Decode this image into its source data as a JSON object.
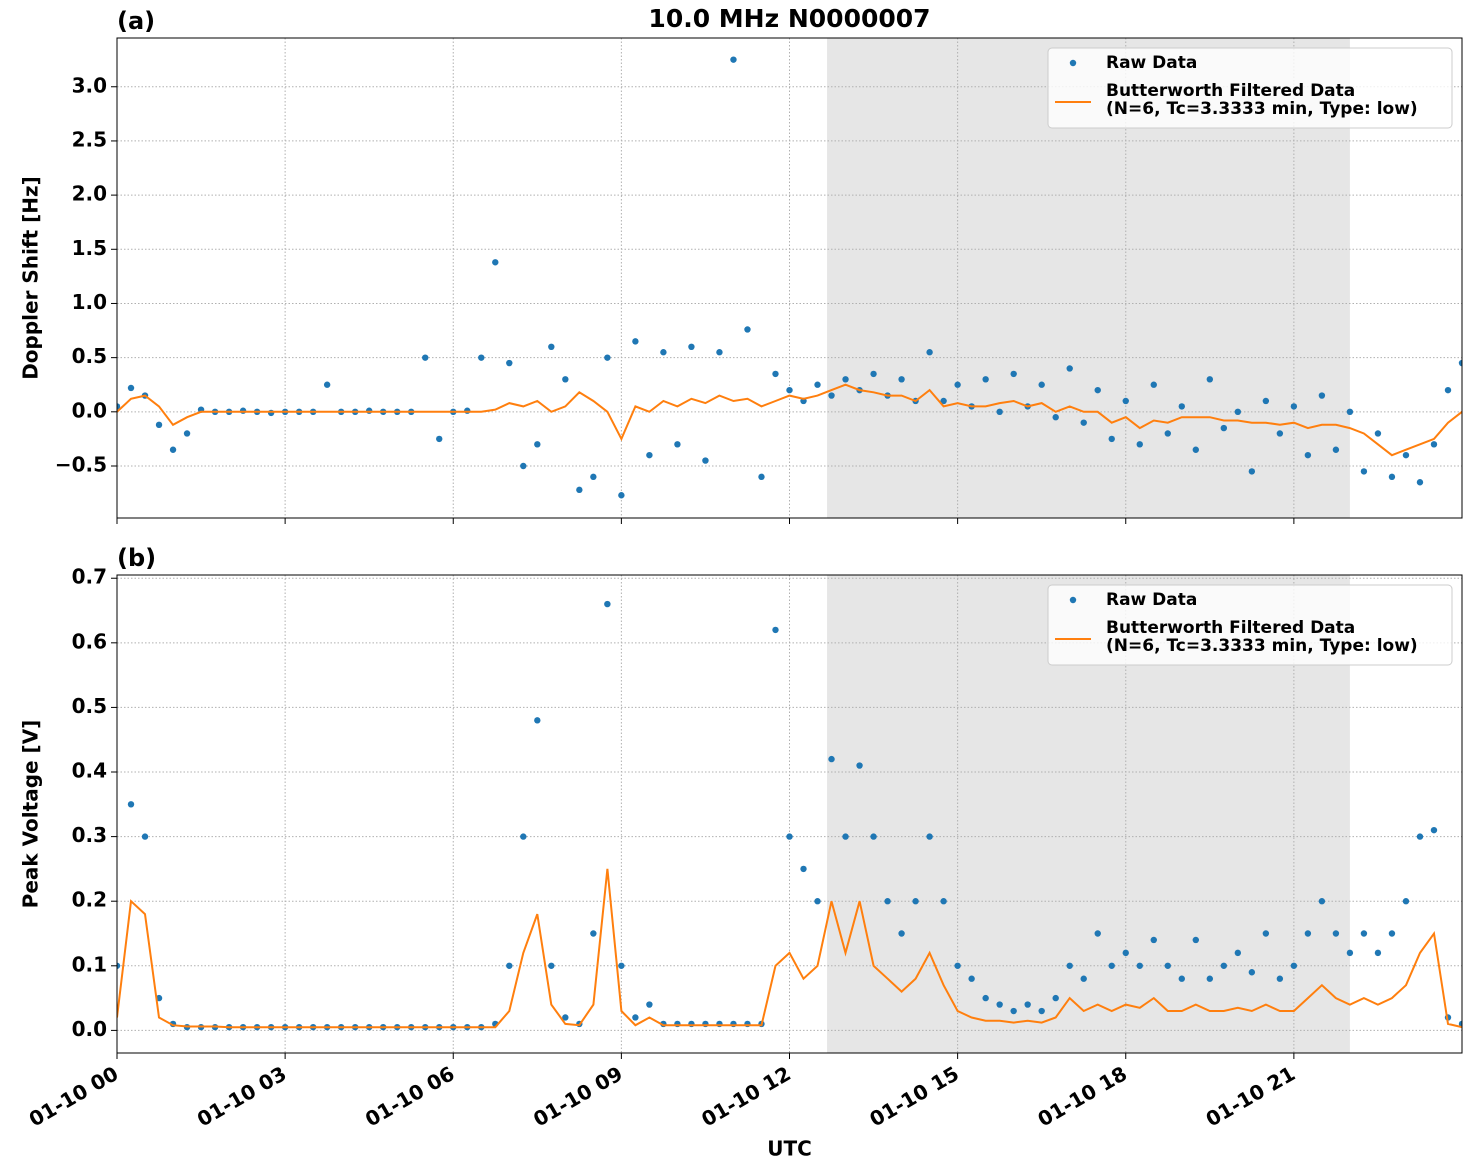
{
  "chart_data": [
    {
      "type": "scatter-line",
      "title": "10.0 MHz N0000007",
      "panel_label": "(a)",
      "ylabel": "Doppler Shift [Hz]",
      "xlim": [
        0,
        24
      ],
      "xticks": [
        0,
        3,
        6,
        9,
        12,
        15,
        18,
        21
      ],
      "ylim": [
        -0.98,
        3.45
      ],
      "yticks": [
        {
          "value": -0.5,
          "label": "−0.5"
        },
        {
          "value": 0,
          "label": "0.0"
        },
        {
          "value": 0.5,
          "label": "0.5"
        },
        {
          "value": 1,
          "label": "1.0"
        },
        {
          "value": 1.5,
          "label": "1.5"
        },
        {
          "value": 2,
          "label": "2.0"
        },
        {
          "value": 2.5,
          "label": "2.5"
        },
        {
          "value": 3,
          "label": "3.0"
        }
      ],
      "grid": true,
      "legend": "upper right",
      "shaded_span": [
        12.67,
        22.0
      ],
      "x": [
        0,
        0.25,
        0.5,
        0.75,
        1,
        1.25,
        1.5,
        1.75,
        2,
        2.25,
        2.5,
        2.75,
        3,
        3.25,
        3.5,
        3.75,
        4,
        4.25,
        4.5,
        4.75,
        5,
        5.25,
        5.5,
        5.75,
        6,
        6.25,
        6.5,
        6.75,
        7,
        7.25,
        7.5,
        7.75,
        8,
        8.25,
        8.5,
        8.75,
        9,
        9.25,
        9.5,
        9.75,
        10,
        10.25,
        10.5,
        10.75,
        11,
        11.25,
        11.5,
        11.75,
        12,
        12.25,
        12.5,
        12.75,
        13,
        13.25,
        13.5,
        13.75,
        14,
        14.25,
        14.5,
        14.75,
        15,
        15.25,
        15.5,
        15.75,
        16,
        16.25,
        16.5,
        16.75,
        17,
        17.25,
        17.5,
        17.75,
        18,
        18.25,
        18.5,
        18.75,
        19,
        19.25,
        19.5,
        19.75,
        20,
        20.25,
        20.5,
        20.75,
        21,
        21.25,
        21.5,
        21.75,
        22,
        22.25,
        22.5,
        22.75,
        23,
        23.25,
        23.5,
        23.75,
        24
      ],
      "series": [
        {
          "name": "Raw Data",
          "kind": "scatter",
          "color": "#1f77b4",
          "values": [
            0.05,
            0.22,
            0.15,
            -0.12,
            -0.35,
            -0.2,
            0.02,
            0.0,
            0.0,
            0.01,
            0.0,
            -0.01,
            0.0,
            0.0,
            0.0,
            0.25,
            0.0,
            0.0,
            0.01,
            0.0,
            0.0,
            0.0,
            0.5,
            -0.25,
            0.0,
            0.01,
            0.5,
            1.38,
            0.45,
            -0.5,
            -0.3,
            0.6,
            0.3,
            -0.72,
            -0.6,
            0.5,
            -0.77,
            0.65,
            -0.4,
            0.55,
            -0.3,
            0.6,
            -0.45,
            0.55,
            3.25,
            0.76,
            -0.6,
            0.35,
            0.2,
            0.1,
            0.25,
            0.15,
            0.3,
            0.2,
            0.35,
            0.15,
            0.3,
            0.1,
            0.55,
            0.1,
            0.25,
            0.05,
            0.3,
            0.0,
            0.35,
            0.05,
            0.25,
            -0.05,
            0.4,
            -0.1,
            0.2,
            -0.25,
            0.1,
            -0.3,
            0.25,
            -0.2,
            0.05,
            -0.35,
            0.3,
            -0.15,
            0.0,
            -0.55,
            0.1,
            -0.2,
            0.05,
            -0.4,
            0.15,
            -0.35,
            0.0,
            -0.55,
            -0.2,
            -0.6,
            -0.4,
            -0.65,
            -0.3,
            0.2,
            0.45
          ]
        },
        {
          "name": "Butterworth Filtered Data\n(N=6, Tc=3.3333 min, Type: low)",
          "kind": "line",
          "color": "#ff7f0e",
          "values": [
            0.0,
            0.12,
            0.15,
            0.05,
            -0.12,
            -0.05,
            0.0,
            0.0,
            0.0,
            0.0,
            0.0,
            0.0,
            0.0,
            0.0,
            0.0,
            0.0,
            0.0,
            0.0,
            0.0,
            0.0,
            0.0,
            0.0,
            0.0,
            0.0,
            0.0,
            0.0,
            0.0,
            0.02,
            0.08,
            0.05,
            0.1,
            0.0,
            0.05,
            0.18,
            0.1,
            0.0,
            -0.25,
            0.05,
            0.0,
            0.1,
            0.05,
            0.12,
            0.08,
            0.15,
            0.1,
            0.12,
            0.05,
            0.1,
            0.15,
            0.12,
            0.15,
            0.2,
            0.25,
            0.2,
            0.18,
            0.15,
            0.15,
            0.1,
            0.2,
            0.05,
            0.08,
            0.05,
            0.05,
            0.08,
            0.1,
            0.05,
            0.08,
            0.0,
            0.05,
            0.0,
            0.0,
            -0.1,
            -0.05,
            -0.15,
            -0.08,
            -0.1,
            -0.05,
            -0.05,
            -0.05,
            -0.08,
            -0.08,
            -0.1,
            -0.1,
            -0.12,
            -0.1,
            -0.15,
            -0.12,
            -0.12,
            -0.15,
            -0.2,
            -0.3,
            -0.4,
            -0.35,
            -0.3,
            -0.25,
            -0.1,
            0.0
          ]
        }
      ]
    },
    {
      "type": "scatter-line",
      "panel_label": "(b)",
      "ylabel": "Peak Voltage [V]",
      "xlabel": "UTC",
      "xlim": [
        0,
        24
      ],
      "xticks": [
        {
          "value": 0,
          "label": "01-10 00"
        },
        {
          "value": 3,
          "label": "01-10 03"
        },
        {
          "value": 6,
          "label": "01-10 06"
        },
        {
          "value": 9,
          "label": "01-10 09"
        },
        {
          "value": 12,
          "label": "01-10 12"
        },
        {
          "value": 15,
          "label": "01-10 15"
        },
        {
          "value": 18,
          "label": "01-10 18"
        },
        {
          "value": 21,
          "label": "01-10 21"
        }
      ],
      "ylim": [
        -0.035,
        0.705
      ],
      "yticks": [
        {
          "value": 0,
          "label": "0.0"
        },
        0.1,
        0.2,
        0.3,
        0.4,
        0.5,
        0.6,
        0.7
      ],
      "grid": true,
      "legend": "upper right",
      "shaded_span": [
        12.67,
        22.0
      ],
      "x": [
        0,
        0.25,
        0.5,
        0.75,
        1,
        1.25,
        1.5,
        1.75,
        2,
        2.25,
        2.5,
        2.75,
        3,
        3.25,
        3.5,
        3.75,
        4,
        4.25,
        4.5,
        4.75,
        5,
        5.25,
        5.5,
        5.75,
        6,
        6.25,
        6.5,
        6.75,
        7,
        7.25,
        7.5,
        7.75,
        8,
        8.25,
        8.5,
        8.75,
        9,
        9.25,
        9.5,
        9.75,
        10,
        10.25,
        10.5,
        10.75,
        11,
        11.25,
        11.5,
        11.75,
        12,
        12.25,
        12.5,
        12.75,
        13,
        13.25,
        13.5,
        13.75,
        14,
        14.25,
        14.5,
        14.75,
        15,
        15.25,
        15.5,
        15.75,
        16,
        16.25,
        16.5,
        16.75,
        17,
        17.25,
        17.5,
        17.75,
        18,
        18.25,
        18.5,
        18.75,
        19,
        19.25,
        19.5,
        19.75,
        20,
        20.25,
        20.5,
        20.75,
        21,
        21.25,
        21.5,
        21.75,
        22,
        22.25,
        22.5,
        22.75,
        23,
        23.25,
        23.5,
        23.75,
        24
      ],
      "series": [
        {
          "name": "Raw Data",
          "kind": "scatter",
          "color": "#1f77b4",
          "values": [
            0.1,
            0.35,
            0.3,
            0.05,
            0.01,
            0.005,
            0.005,
            0.005,
            0.005,
            0.005,
            0.005,
            0.005,
            0.005,
            0.005,
            0.005,
            0.005,
            0.005,
            0.005,
            0.005,
            0.005,
            0.005,
            0.005,
            0.005,
            0.005,
            0.005,
            0.005,
            0.005,
            0.01,
            0.1,
            0.3,
            0.48,
            0.1,
            0.02,
            0.01,
            0.15,
            0.66,
            0.1,
            0.02,
            0.04,
            0.01,
            0.01,
            0.01,
            0.01,
            0.01,
            0.01,
            0.01,
            0.01,
            0.62,
            0.3,
            0.25,
            0.2,
            0.42,
            0.3,
            0.41,
            0.3,
            0.2,
            0.15,
            0.2,
            0.3,
            0.2,
            0.1,
            0.08,
            0.05,
            0.04,
            0.03,
            0.04,
            0.03,
            0.05,
            0.1,
            0.08,
            0.15,
            0.1,
            0.12,
            0.1,
            0.14,
            0.1,
            0.08,
            0.14,
            0.08,
            0.1,
            0.12,
            0.09,
            0.15,
            0.08,
            0.1,
            0.15,
            0.2,
            0.15,
            0.12,
            0.15,
            0.12,
            0.15,
            0.2,
            0.3,
            0.31,
            0.02,
            0.01
          ]
        },
        {
          "name": "Butterworth Filtered Data\n(N=6, Tc=3.3333 min, Type: low)",
          "kind": "line",
          "color": "#ff7f0e",
          "values": [
            0.02,
            0.2,
            0.18,
            0.02,
            0.008,
            0.006,
            0.006,
            0.006,
            0.005,
            0.005,
            0.005,
            0.005,
            0.005,
            0.005,
            0.005,
            0.005,
            0.005,
            0.005,
            0.005,
            0.005,
            0.005,
            0.005,
            0.005,
            0.005,
            0.005,
            0.005,
            0.005,
            0.005,
            0.03,
            0.12,
            0.18,
            0.04,
            0.01,
            0.008,
            0.04,
            0.25,
            0.03,
            0.008,
            0.02,
            0.008,
            0.008,
            0.008,
            0.008,
            0.008,
            0.008,
            0.008,
            0.008,
            0.1,
            0.12,
            0.08,
            0.1,
            0.2,
            0.12,
            0.2,
            0.1,
            0.08,
            0.06,
            0.08,
            0.12,
            0.07,
            0.03,
            0.02,
            0.015,
            0.015,
            0.012,
            0.015,
            0.012,
            0.02,
            0.05,
            0.03,
            0.04,
            0.03,
            0.04,
            0.035,
            0.05,
            0.03,
            0.03,
            0.04,
            0.03,
            0.03,
            0.035,
            0.03,
            0.04,
            0.03,
            0.03,
            0.05,
            0.07,
            0.05,
            0.04,
            0.05,
            0.04,
            0.05,
            0.07,
            0.12,
            0.15,
            0.01,
            0.005
          ]
        }
      ]
    }
  ]
}
